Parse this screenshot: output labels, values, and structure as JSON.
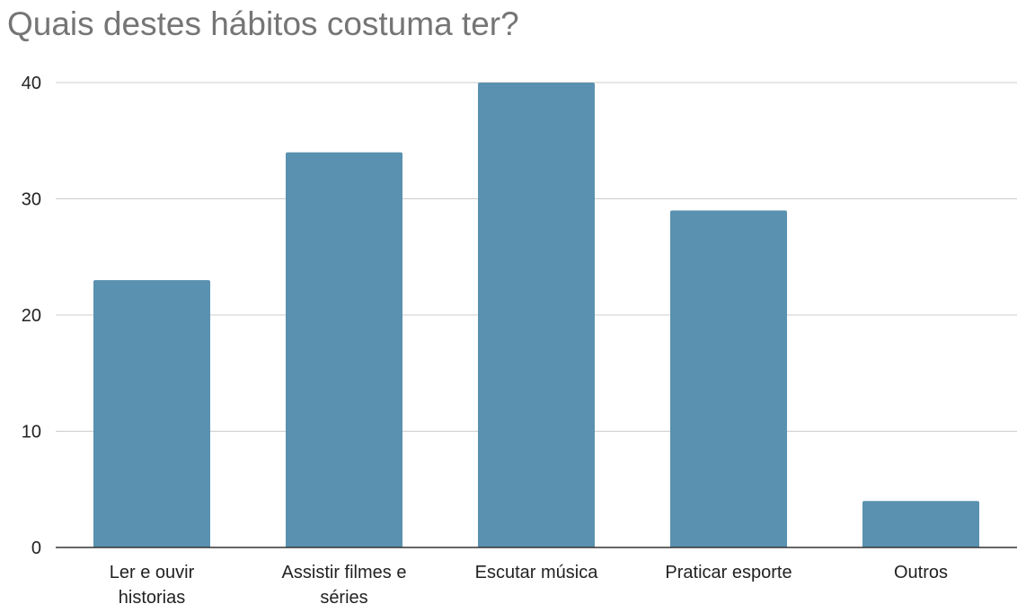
{
  "chart_data": {
    "type": "bar",
    "title": "Quais destes hábitos costuma ter?",
    "categories": [
      [
        "Ler e ouvir",
        "historias"
      ],
      [
        "Assistir filmes e",
        "séries"
      ],
      [
        "Escutar música"
      ],
      [
        "Praticar esporte"
      ],
      [
        "Outros"
      ]
    ],
    "values": [
      23,
      34,
      40,
      29,
      4
    ],
    "ylim": [
      0,
      40
    ],
    "yticks": [
      0,
      10,
      20,
      30,
      40
    ],
    "grid": true,
    "legend": "none",
    "colors": {
      "bar": "#5a91b0",
      "grid": "#cccccc",
      "axis": "#333333"
    }
  }
}
